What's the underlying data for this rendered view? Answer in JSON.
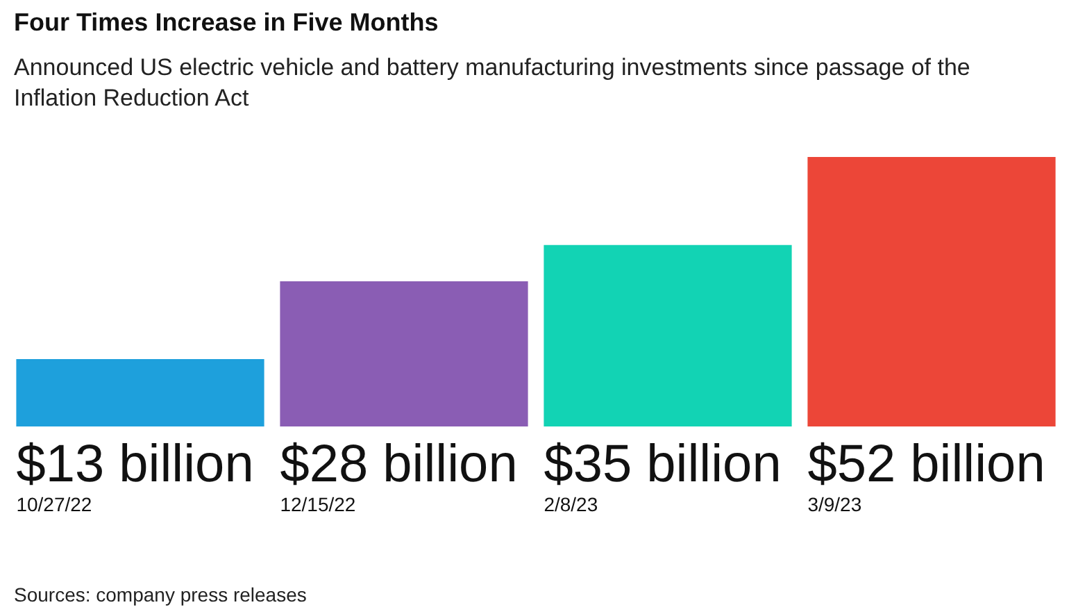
{
  "chart_data": {
    "type": "bar",
    "title": "Four Times Increase in Five Months",
    "subtitle": "Announced US electric vehicle and battery manufacturing investments since passage of the Inflation Reduction Act",
    "categories": [
      "10/27/22",
      "12/15/22",
      "2/8/23",
      "3/9/23"
    ],
    "values": [
      13,
      28,
      35,
      52
    ],
    "colors": [
      "#1ea0dc",
      "#8a5db4",
      "#12d3b4",
      "#ec4638"
    ],
    "value_labels": [
      "$13 billion",
      "$28 billion",
      "$35 billion",
      "$52 billion"
    ],
    "annotations": [
      "Sources: company press releases"
    ]
  }
}
